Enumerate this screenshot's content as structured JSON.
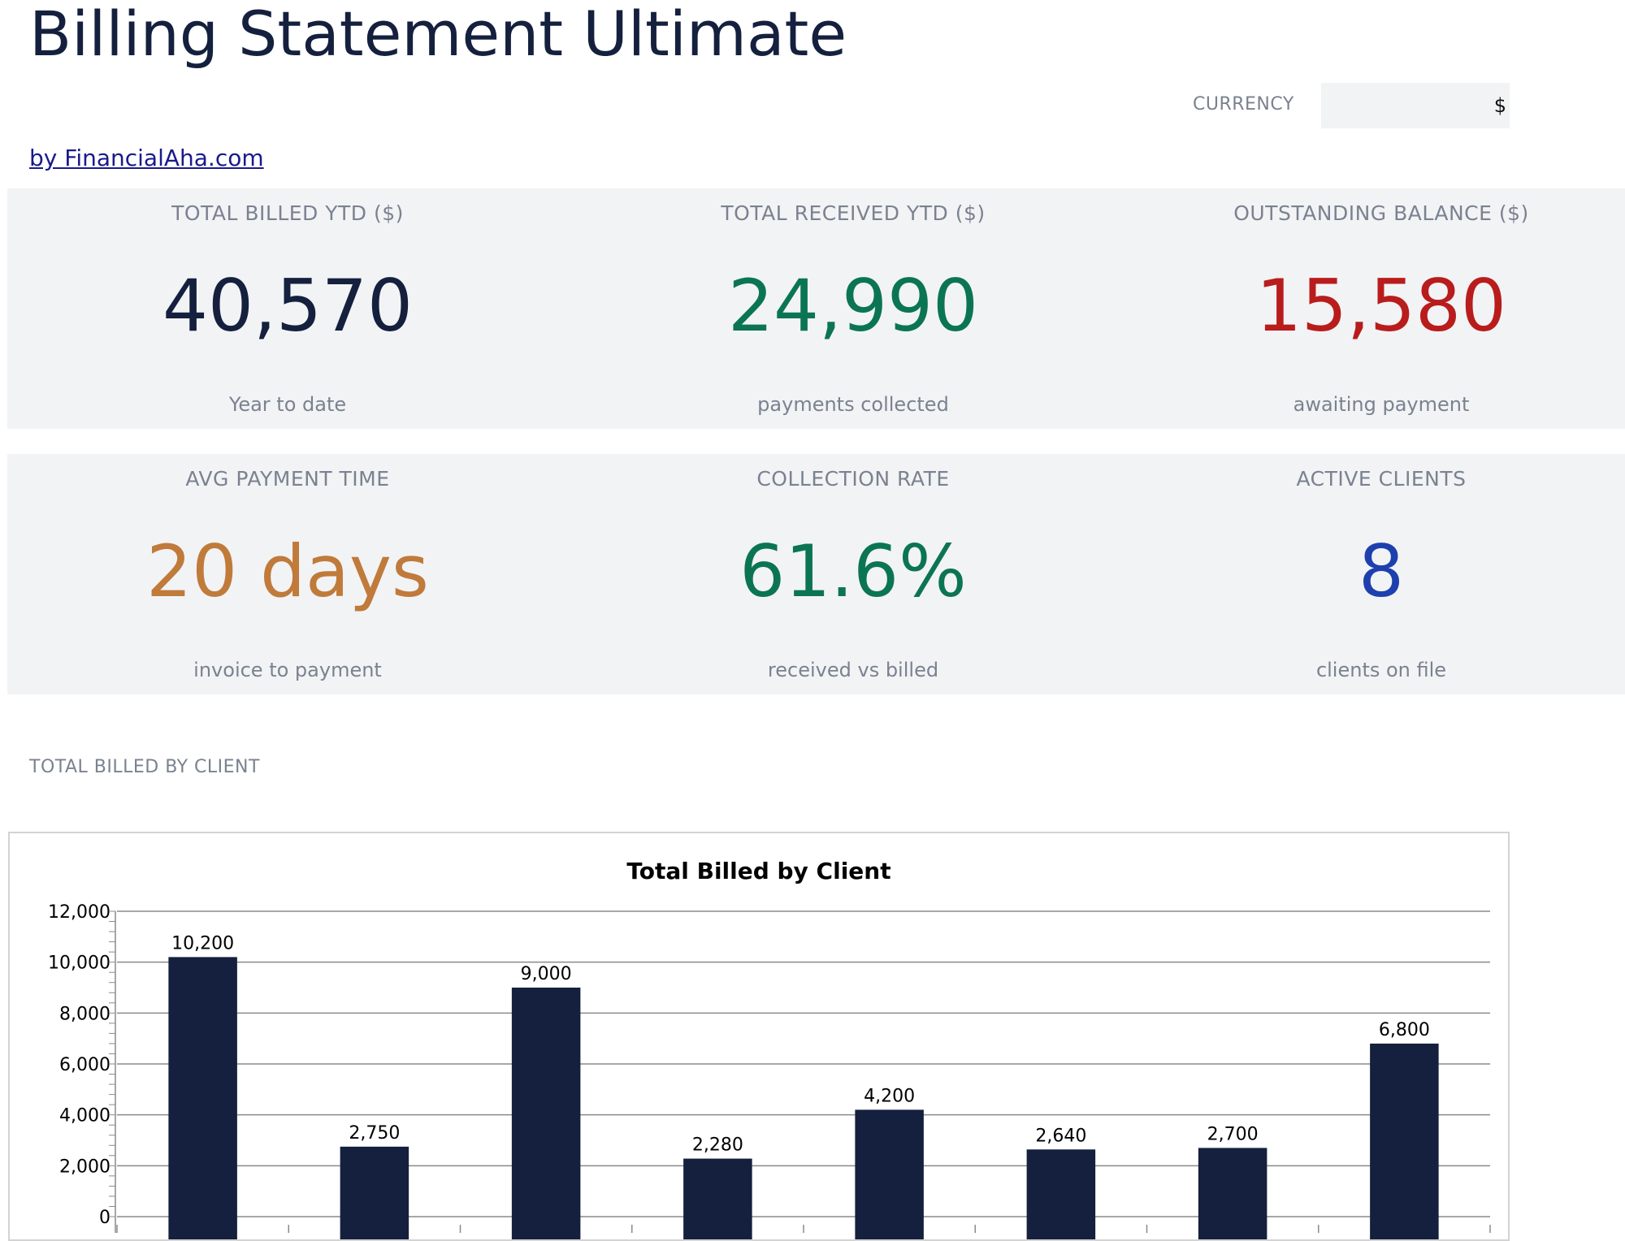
{
  "header": {
    "title": "Billing Statement Ultimate",
    "currency_label": "CURRENCY",
    "currency_value": "$",
    "byline": "by FinancialAha.com"
  },
  "kpis": [
    {
      "label": "TOTAL BILLED YTD ($)",
      "value": "40,570",
      "sub": "Year to date",
      "color": "#14203d"
    },
    {
      "label": "TOTAL RECEIVED YTD ($)",
      "value": "24,990",
      "sub": "payments collected",
      "color": "#0b7553"
    },
    {
      "label": "OUTSTANDING BALANCE ($)",
      "value": "15,580",
      "sub": "awaiting payment",
      "color": "#b91c1c"
    },
    {
      "label": "AVG PAYMENT TIME",
      "value": "20 days",
      "sub": "invoice to payment",
      "color": "#c07a3a"
    },
    {
      "label": "COLLECTION RATE",
      "value": "61.6%",
      "sub": "received vs billed",
      "color": "#0b7553"
    },
    {
      "label": "ACTIVE CLIENTS",
      "value": "8",
      "sub": "clients on file",
      "color": "#1e40af"
    }
  ],
  "section": {
    "label": "TOTAL BILLED BY CLIENT"
  },
  "chart_data": {
    "type": "bar",
    "title": "Total Billed by Client",
    "values": [
      10200,
      2750,
      9000,
      2280,
      4200,
      2640,
      2700,
      6800
    ],
    "data_labels": [
      "10,200",
      "2,750",
      "9,000",
      "2,280",
      "4,200",
      "2,640",
      "2,700",
      "6,800"
    ],
    "y_ticks": [
      "0",
      "2,000",
      "4,000",
      "6,000",
      "8,000",
      "10,000",
      "12,000"
    ],
    "ylim": [
      0,
      12000
    ],
    "bar_color": "#14203d",
    "grid": true
  }
}
